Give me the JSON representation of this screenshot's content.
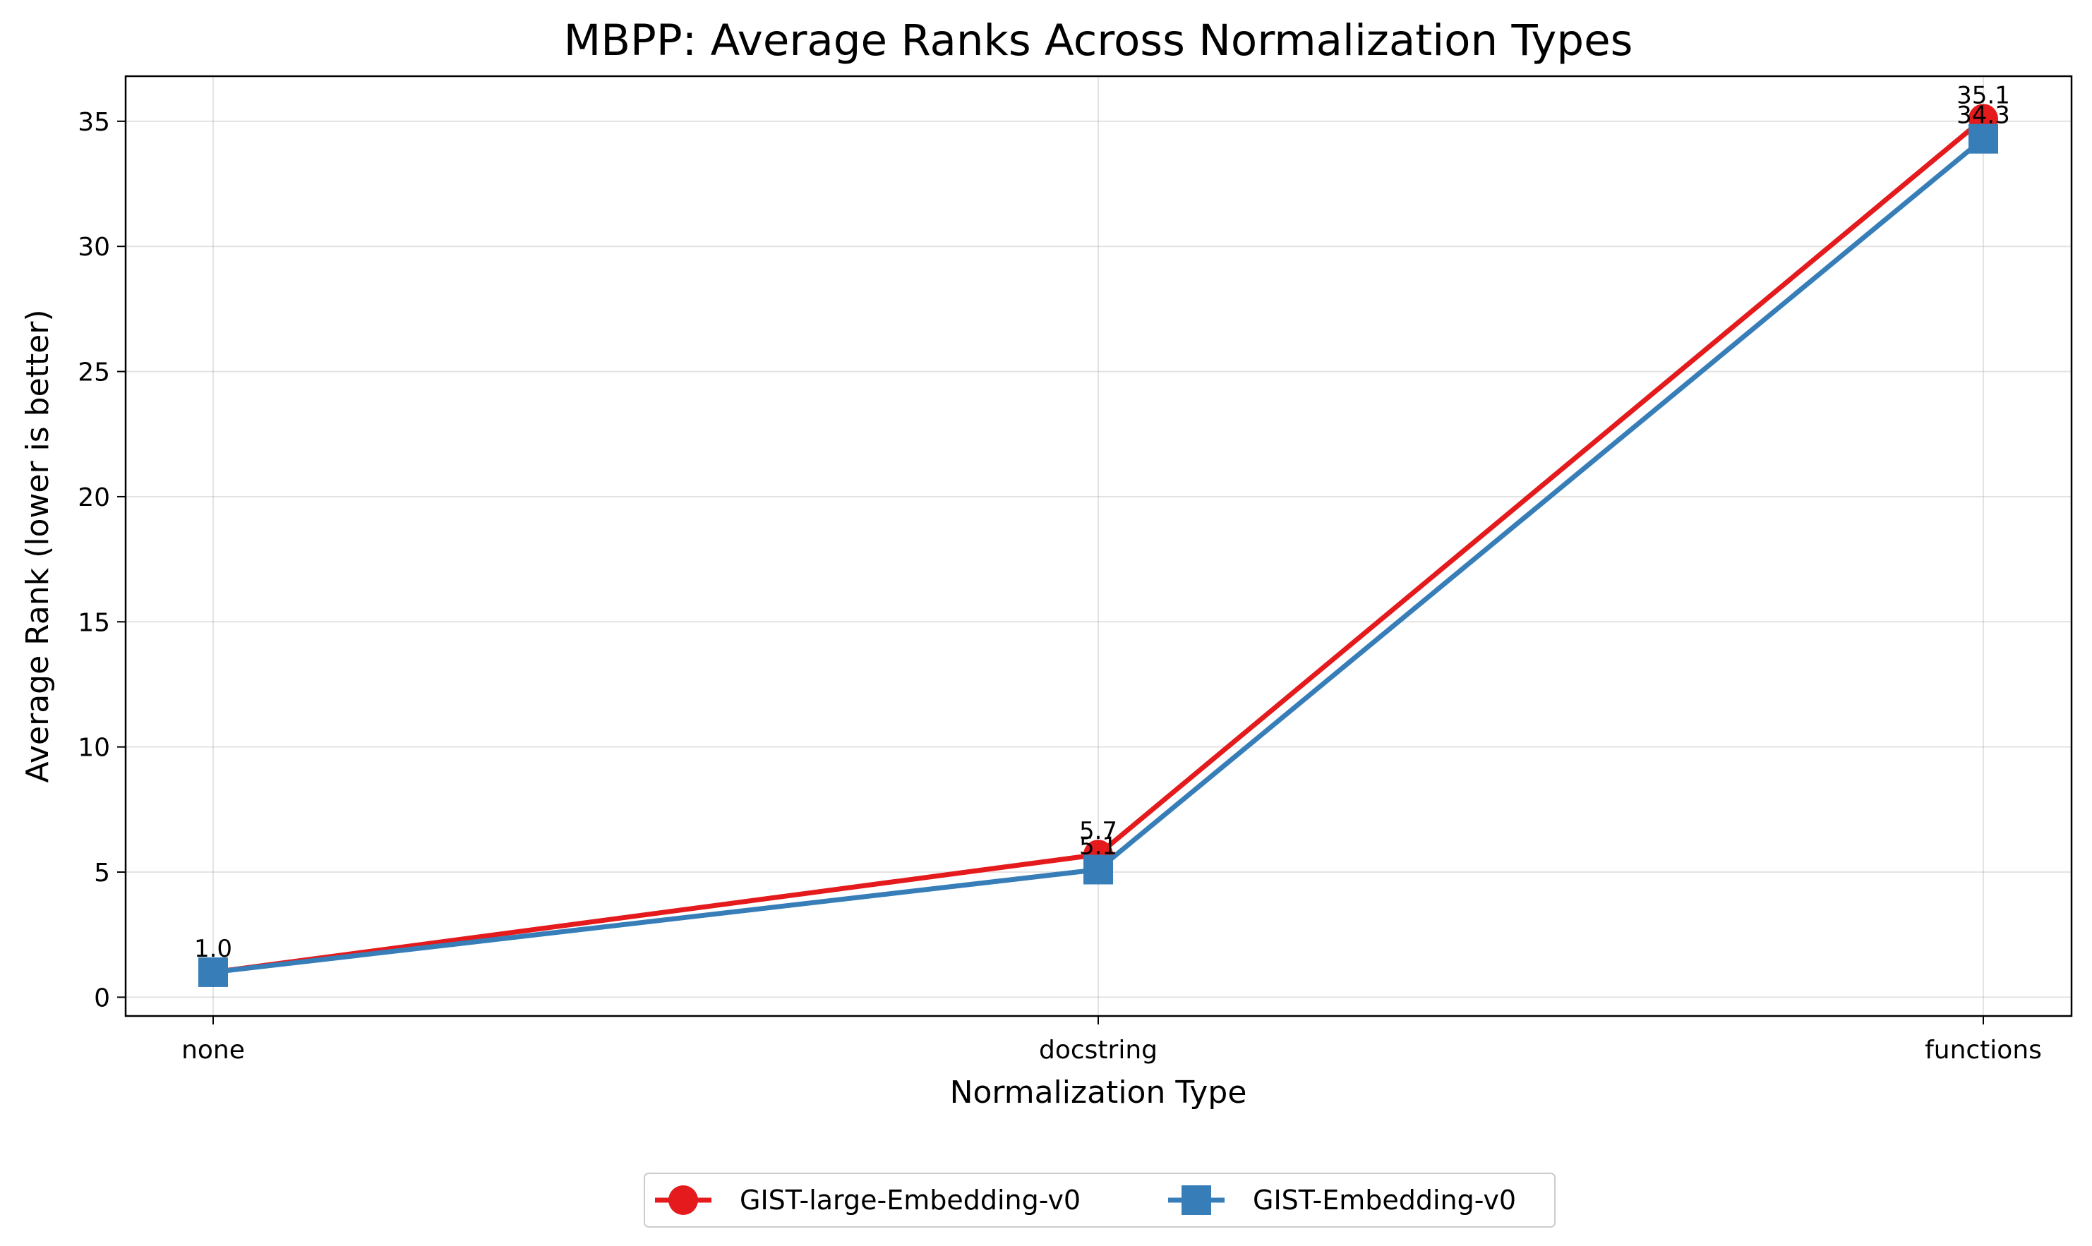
{
  "chart_data": {
    "type": "line",
    "title": "MBPP: Average Ranks Across Normalization Types",
    "xlabel": "Normalization Type",
    "ylabel": "Average Rank (lower is better)",
    "categories": [
      "none",
      "docstring",
      "functions"
    ],
    "ylim": [
      -0.75,
      36.8
    ],
    "yticks": [
      0,
      5,
      10,
      15,
      20,
      25,
      30,
      35
    ],
    "grid": true,
    "legend_position": "bottom-center",
    "series": [
      {
        "name": "GIST-large-Embedding-v0",
        "color": "#e41a1c",
        "marker": "circle",
        "values": [
          1.0,
          5.7,
          35.1
        ],
        "labels": [
          "1.0",
          "5.7",
          "35.1"
        ]
      },
      {
        "name": "GIST-Embedding-v0",
        "color": "#377eb8",
        "marker": "square",
        "values": [
          1.0,
          5.1,
          34.3
        ],
        "labels": [
          "1.0",
          "5.1",
          "34.3"
        ]
      }
    ]
  }
}
